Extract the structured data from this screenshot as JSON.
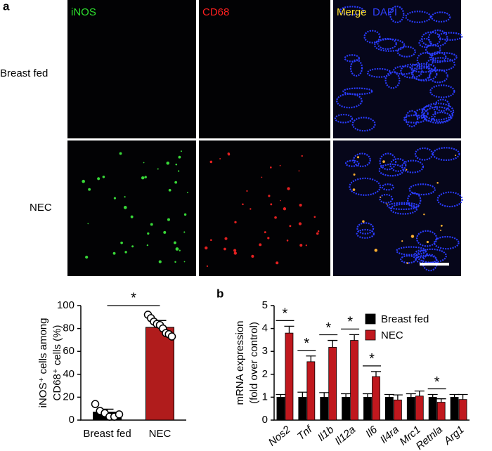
{
  "panel_a": {
    "label": "a",
    "column_labels": [
      "iNOS",
      "CD68",
      "Merge",
      "DAPI"
    ],
    "row_labels": [
      "Breast fed",
      "NEC"
    ]
  },
  "chart_data": [
    {
      "type": "bar",
      "categories": [
        "Breast fed",
        "NEC"
      ],
      "values": [
        7,
        81
      ],
      "errors": [
        2.5,
        6
      ],
      "colors": [
        "#000000",
        "#b01c1c"
      ],
      "points": [
        [
          14,
          8,
          6,
          3,
          3,
          5
        ],
        [
          92,
          89,
          86,
          84,
          83,
          80,
          76,
          75,
          73
        ]
      ],
      "y_label": [
        "iNOS⁺ cells among",
        "CD68⁺ cells (%)"
      ],
      "ylim": [
        0,
        100
      ],
      "yticks": [
        0,
        20,
        40,
        60,
        80,
        100
      ],
      "significance": "*"
    },
    {
      "type": "grouped_bar",
      "label": "b",
      "categories": [
        "Nos2",
        "Tnf",
        "Il1b",
        "Il12a",
        "Il6",
        "Il4ra",
        "Mrc1",
        "Retnla",
        "Arg1"
      ],
      "series": [
        {
          "name": "Breast fed",
          "color": "#000000",
          "values": [
            1,
            1,
            1,
            1,
            1,
            1,
            1,
            1,
            1
          ],
          "errors": [
            0.12,
            0.22,
            0.2,
            0.15,
            0.15,
            0.12,
            0.15,
            0.12,
            0.12
          ]
        },
        {
          "name": "NEC",
          "color": "#c0181e",
          "values": [
            3.8,
            2.55,
            3.18,
            3.48,
            1.9,
            0.88,
            1.05,
            0.78,
            0.9
          ],
          "errors": [
            0.3,
            0.25,
            0.3,
            0.25,
            0.22,
            0.22,
            0.22,
            0.15,
            0.22
          ]
        }
      ],
      "significance_labels": [
        "*",
        "*",
        "*",
        "*",
        "*",
        null,
        null,
        "*",
        null
      ],
      "y_label": [
        "mRNA expression",
        "(fold over control)"
      ],
      "ylim": [
        0,
        5
      ],
      "yticks": [
        0,
        1,
        2,
        3,
        4,
        5
      ],
      "legend": "upper right"
    }
  ]
}
